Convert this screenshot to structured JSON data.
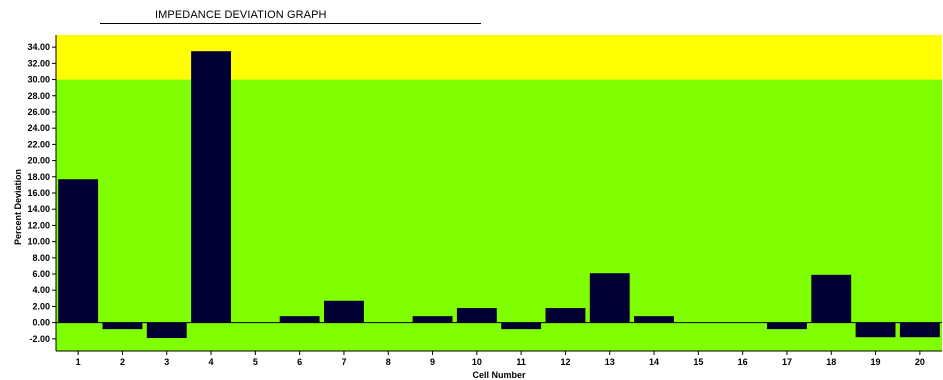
{
  "title": "IMPEDANCE DEVIATION GRAPH",
  "chart_data": {
    "type": "bar",
    "title": "IMPEDANCE DEVIATION GRAPH",
    "xlabel": "Cell Number",
    "ylabel": "Percent Deviation",
    "ylim": [
      -3.5,
      35.5
    ],
    "yticks": [
      "34.00",
      "32.00",
      "30.00",
      "28.00",
      "26.00",
      "24.00",
      "22.00",
      "20.00",
      "18.00",
      "16.00",
      "14.00",
      "12.00",
      "10.00",
      "8.00",
      "6.00",
      "4.00",
      "2.00",
      "0.00",
      "-2.00"
    ],
    "ytick_values": [
      34,
      32,
      30,
      28,
      26,
      24,
      22,
      20,
      18,
      16,
      14,
      12,
      10,
      8,
      6,
      4,
      2,
      0,
      -2
    ],
    "categories": [
      "1",
      "2",
      "3",
      "4",
      "5",
      "6",
      "7",
      "8",
      "9",
      "10",
      "11",
      "12",
      "13",
      "14",
      "15",
      "16",
      "17",
      "18",
      "19",
      "20"
    ],
    "values": [
      17.7,
      -0.8,
      -1.9,
      33.5,
      0,
      0.8,
      2.7,
      0,
      0.8,
      1.8,
      -0.8,
      1.8,
      6.1,
      0.8,
      0,
      0,
      -0.8,
      5.9,
      -1.8,
      -1.8
    ],
    "bands": [
      {
        "from": -3.5,
        "to": 30,
        "color": "#80ff00"
      },
      {
        "from": 30,
        "to": 35.5,
        "color": "#ffff00"
      }
    ],
    "bar_color": "#000033",
    "grid": false
  }
}
